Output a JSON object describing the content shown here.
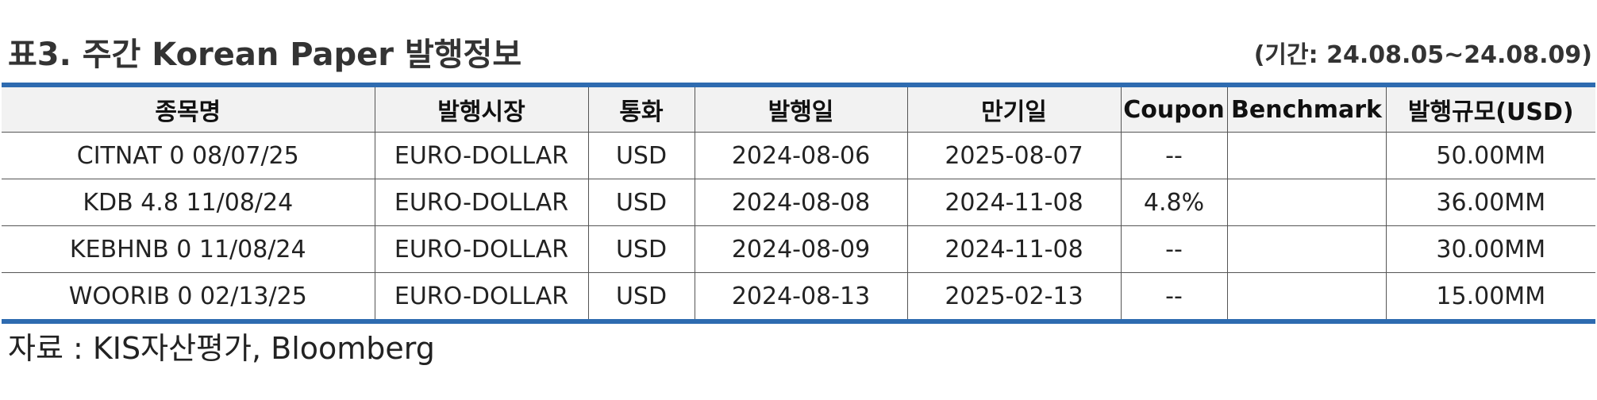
{
  "header": {
    "title": "표3. 주간 Korean Paper 발행정보",
    "period": "(기간: 24.08.05~24.08.09)"
  },
  "table": {
    "columns": [
      "종목명",
      "발행시장",
      "통화",
      "발행일",
      "만기일",
      "Coupon",
      "Benchmark",
      "발행규모(USD)"
    ],
    "rows": [
      [
        "CITNAT 0 08/07/25",
        "EURO-DOLLAR",
        "USD",
        "2024-08-06",
        "2025-08-07",
        "--",
        "",
        "50.00MM"
      ],
      [
        "KDB 4.8 11/08/24",
        "EURO-DOLLAR",
        "USD",
        "2024-08-08",
        "2024-11-08",
        "4.8%",
        "",
        "36.00MM"
      ],
      [
        "KEBHNB 0 11/08/24",
        "EURO-DOLLAR",
        "USD",
        "2024-08-09",
        "2024-11-08",
        "--",
        "",
        "30.00MM"
      ],
      [
        "WOORIB 0 02/13/25",
        "EURO-DOLLAR",
        "USD",
        "2024-08-13",
        "2025-02-13",
        "--",
        "",
        "15.00MM"
      ]
    ],
    "accent_color": "#2e6bb0",
    "header_bg": "#f2f2f2"
  },
  "footer": {
    "source": "자료 : KIS자산평가, Bloomberg"
  }
}
